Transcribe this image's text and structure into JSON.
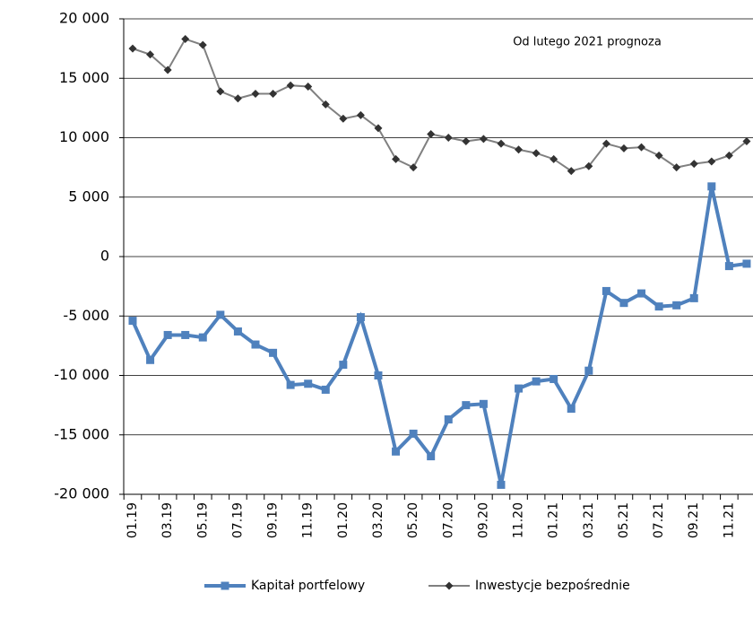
{
  "chart_data": {
    "type": "line",
    "annotation": "Od lutego 2021 prognoza",
    "categories": [
      "01.19",
      null,
      "03.19",
      null,
      "05.19",
      null,
      "07.19",
      null,
      "09.19",
      null,
      "11.19",
      null,
      "01.20",
      null,
      "03.20",
      null,
      "05.20",
      null,
      "07.20",
      null,
      "09.20",
      null,
      "11.20",
      null,
      "01.21",
      null,
      "03.21",
      null,
      "05.21",
      null,
      "07.21",
      null,
      "09.21",
      null,
      "11.21",
      null
    ],
    "series": [
      {
        "name": "Kapitał portfelowy",
        "color": "#4f81bd",
        "marker": "square",
        "values": [
          -5400,
          -8700,
          -6600,
          -6600,
          -6800,
          -4900,
          -6300,
          -7400,
          -8100,
          -10800,
          -10700,
          -11200,
          -9100,
          -5100,
          -10000,
          -16400,
          -14900,
          -16800,
          -13700,
          -12500,
          -12400,
          -19200,
          -11100,
          -10500,
          -10300,
          -12800,
          -9600,
          -2900,
          -3900,
          -3100,
          -4200,
          -4100,
          -3500,
          5900,
          -800,
          -600
        ]
      },
      {
        "name": "Inwestycje bezpośrednie",
        "color": "#808080",
        "marker": "diamond",
        "values": [
          17500,
          17000,
          15700,
          18300,
          17800,
          13900,
          13300,
          13700,
          13700,
          14400,
          14300,
          12800,
          11600,
          11900,
          10800,
          8200,
          7500,
          10300,
          10000,
          9700,
          9900,
          9500,
          9000,
          8700,
          8200,
          7200,
          7600,
          9500,
          9100,
          9200,
          8500,
          7500,
          7800,
          8000,
          8500,
          9700
        ]
      }
    ],
    "ylim": [
      -20000,
      20000
    ],
    "yticks": [
      {
        "value": -20000,
        "label": "-20 000"
      },
      {
        "value": -15000,
        "label": "-15 000"
      },
      {
        "value": -10000,
        "label": "-10 000"
      },
      {
        "value": -5000,
        "label": "-5 000"
      },
      0,
      {
        "value": 5000,
        "label": "5 000"
      },
      {
        "value": 10000,
        "label": "10 000"
      },
      {
        "value": 15000,
        "label": "15 000"
      },
      {
        "value": 20000,
        "label": "20 000"
      }
    ],
    "grid": true,
    "legend": "bottom"
  }
}
